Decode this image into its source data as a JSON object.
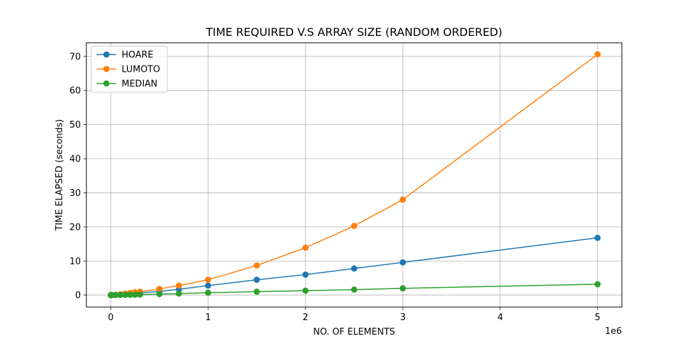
{
  "chart_data": {
    "type": "line",
    "title": "TIME REQUIRED V.S ARRAY SIZE (RANDOM ORDERED)",
    "xlabel": "NO. OF ELEMENTS",
    "ylabel": "TIME ELAPSED (seconds)",
    "x_offset_text": "1e6",
    "x_scale": 1000000,
    "xlim": [
      -250000,
      5250000
    ],
    "ylim": [
      -3.5,
      74.0
    ],
    "x_ticks": [
      0,
      1000000,
      2000000,
      3000000,
      4000000,
      5000000
    ],
    "x_tick_labels": [
      "0",
      "1",
      "2",
      "3",
      "4",
      "5"
    ],
    "y_ticks": [
      0,
      10,
      20,
      30,
      40,
      50,
      60,
      70
    ],
    "y_tick_labels": [
      "0",
      "10",
      "20",
      "30",
      "40",
      "50",
      "60",
      "70"
    ],
    "grid": true,
    "legend_position": "upper-left",
    "series": [
      {
        "name": "HOARE",
        "color": "#1f77b4",
        "points": [
          [
            1000,
            0.0
          ],
          [
            5000,
            0.01
          ],
          [
            10000,
            0.02
          ],
          [
            50000,
            0.09
          ],
          [
            100000,
            0.2
          ],
          [
            150000,
            0.3
          ],
          [
            200000,
            0.4
          ],
          [
            250000,
            0.5
          ],
          [
            300000,
            0.6
          ],
          [
            500000,
            1.1
          ],
          [
            700000,
            1.7
          ],
          [
            1000000,
            2.8
          ],
          [
            1500000,
            4.5
          ],
          [
            2000000,
            6.0
          ],
          [
            2500000,
            7.8
          ],
          [
            3000000,
            9.6
          ],
          [
            5000000,
            16.8
          ]
        ]
      },
      {
        "name": "LUMOTO",
        "color": "#ff7f0e",
        "points": [
          [
            1000,
            0.0
          ],
          [
            5000,
            0.02
          ],
          [
            10000,
            0.04
          ],
          [
            50000,
            0.1
          ],
          [
            100000,
            0.25
          ],
          [
            150000,
            0.45
          ],
          [
            200000,
            0.65
          ],
          [
            250000,
            0.85
          ],
          [
            300000,
            1.0
          ],
          [
            500000,
            1.8
          ],
          [
            700000,
            2.8
          ],
          [
            1000000,
            4.5
          ],
          [
            1500000,
            8.7
          ],
          [
            2000000,
            13.9
          ],
          [
            2500000,
            20.3
          ],
          [
            3000000,
            28.0
          ],
          [
            5000000,
            70.6
          ]
        ]
      },
      {
        "name": "MEDIAN",
        "color": "#2ca02c",
        "points": [
          [
            1000,
            0.0
          ],
          [
            5000,
            0.0
          ],
          [
            10000,
            0.01
          ],
          [
            50000,
            0.03
          ],
          [
            100000,
            0.05
          ],
          [
            150000,
            0.08
          ],
          [
            200000,
            0.1
          ],
          [
            250000,
            0.12
          ],
          [
            300000,
            0.15
          ],
          [
            500000,
            0.3
          ],
          [
            700000,
            0.45
          ],
          [
            1000000,
            0.7
          ],
          [
            1500000,
            1.0
          ],
          [
            2000000,
            1.3
          ],
          [
            2500000,
            1.6
          ],
          [
            3000000,
            2.0
          ],
          [
            5000000,
            3.2
          ]
        ]
      }
    ]
  }
}
